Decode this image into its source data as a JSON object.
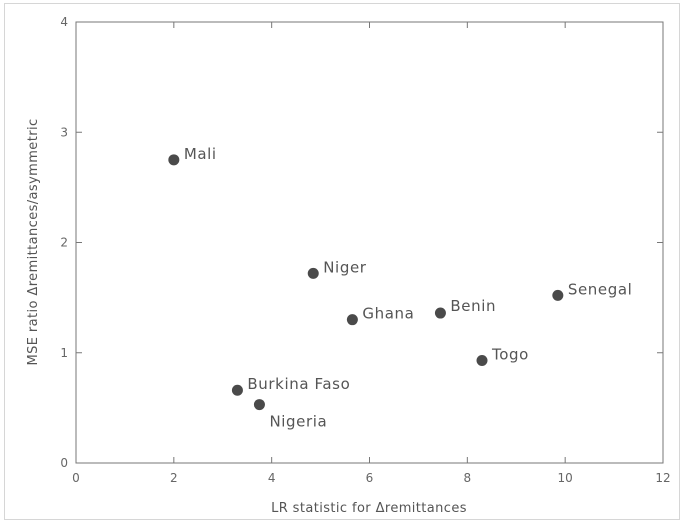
{
  "chart_data": {
    "type": "scatter",
    "title": "",
    "xlabel": "LR statistic for Δremittances",
    "ylabel": "MSE ratio Δremittances/asymmetric",
    "xlim": [
      0,
      12
    ],
    "ylim": [
      0,
      4
    ],
    "xticks": [
      0,
      2,
      4,
      6,
      8,
      10,
      12
    ],
    "yticks": [
      0,
      1,
      2,
      3,
      4
    ],
    "grid": false,
    "colors": {
      "point": "#4a4a4a",
      "axis": "#777777"
    },
    "points": [
      {
        "label": "Mali",
        "x": 2.0,
        "y": 2.75
      },
      {
        "label": "Niger",
        "x": 4.85,
        "y": 1.72
      },
      {
        "label": "Ghana",
        "x": 5.65,
        "y": 1.3
      },
      {
        "label": "Benin",
        "x": 7.45,
        "y": 1.36
      },
      {
        "label": "Senegal",
        "x": 9.85,
        "y": 1.52
      },
      {
        "label": "Togo",
        "x": 8.3,
        "y": 0.93
      },
      {
        "label": "Burkina Faso",
        "x": 3.3,
        "y": 0.66
      },
      {
        "label": "Nigeria",
        "x": 3.75,
        "y": 0.53
      }
    ]
  }
}
